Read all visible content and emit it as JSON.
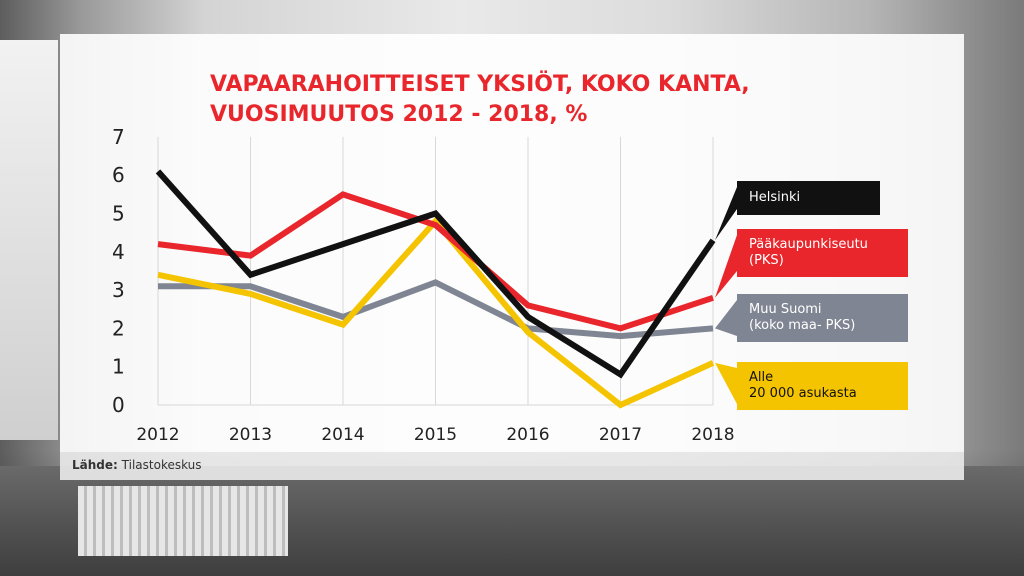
{
  "title_line1": "VAPAARAHOITTEISET YKSIÖT, KOKO KANTA,",
  "title_line2": "VUOSIMUUTOS 2012 - 2018, %",
  "source_label": "Lähde:",
  "source_value": "Tilastokeskus",
  "colors": {
    "helsinki": "#111111",
    "pks": "#e8262c",
    "muu": "#7f8592",
    "alle": "#f5c400",
    "grid": "#d8d8d8",
    "text": "#222222"
  },
  "chart_data": {
    "type": "line",
    "x": [
      "2012",
      "2013",
      "2014",
      "2015",
      "2016",
      "2017",
      "2018"
    ],
    "yticks": [
      "0",
      "1",
      "2",
      "3",
      "4",
      "5",
      "6",
      "7"
    ],
    "ylim": [
      0,
      7
    ],
    "grid": true,
    "legend_position": "right",
    "series": [
      {
        "name": "Helsinki",
        "key": "helsinki",
        "values": [
          6.1,
          3.4,
          4.2,
          5.0,
          2.3,
          0.8,
          4.3
        ]
      },
      {
        "name": "Pääkaupunkiseutu\n(PKS)",
        "key": "pks",
        "values": [
          4.2,
          3.9,
          5.5,
          4.7,
          2.6,
          2.0,
          2.8
        ]
      },
      {
        "name": "Muu Suomi\n(koko maa- PKS)",
        "key": "muu",
        "values": [
          3.1,
          3.1,
          2.3,
          3.2,
          2.0,
          1.8,
          2.0
        ]
      },
      {
        "name": "Alle\n20 000 asukasta",
        "key": "alle",
        "values": [
          3.4,
          2.9,
          2.1,
          4.8,
          1.9,
          0.0,
          1.1
        ]
      }
    ]
  }
}
